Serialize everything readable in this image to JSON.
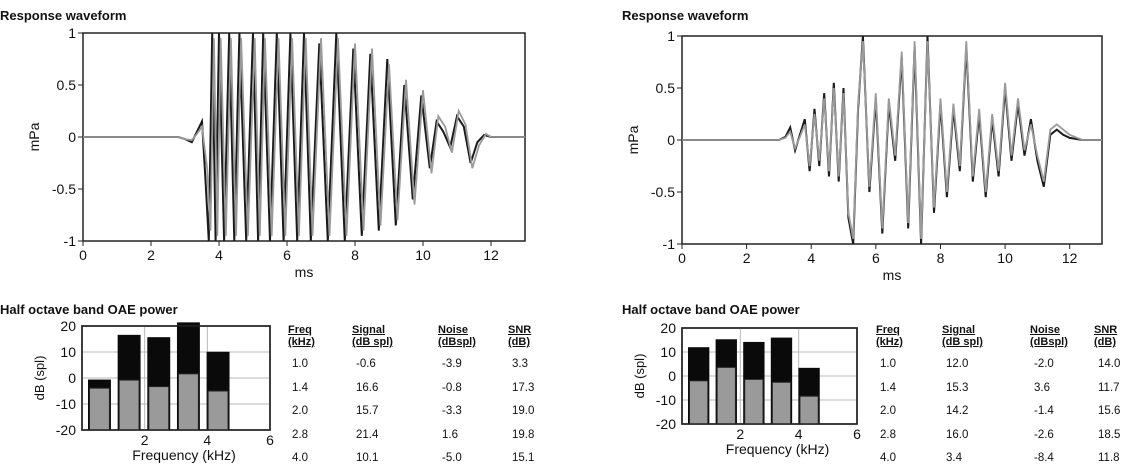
{
  "chart_data": [
    {
      "type": "line",
      "panel": "left",
      "title": "Response waveform",
      "xlabel": "ms",
      "ylabel": "mPa",
      "xlim": [
        0,
        13
      ],
      "ylim": [
        -1,
        1
      ],
      "xticks": [
        0,
        2,
        4,
        6,
        8,
        10,
        12
      ],
      "yticks": [
        -1,
        -0.5,
        0,
        0.5,
        1
      ],
      "ytick_labels": [
        "-1",
        "-0.5",
        "0",
        "0.5",
        "1"
      ],
      "grid": false,
      "series": [
        {
          "color": "#1a1a1a",
          "x": [
            0,
            2.8,
            3.0,
            3.2,
            3.35,
            3.5,
            3.6,
            3.7,
            3.8,
            3.9,
            4.0,
            4.15,
            4.3,
            4.45,
            4.6,
            4.8,
            5.0,
            5.15,
            5.3,
            5.5,
            5.7,
            5.9,
            6.1,
            6.3,
            6.5,
            6.7,
            6.95,
            7.2,
            7.45,
            7.7,
            7.95,
            8.2,
            8.45,
            8.7,
            8.95,
            9.2,
            9.45,
            9.7,
            9.95,
            10.2,
            10.4,
            10.6,
            10.8,
            11.0,
            11.2,
            11.4,
            11.6,
            11.8,
            12.0,
            12.3,
            12.6,
            13.0
          ],
          "y": [
            0,
            0,
            -0.02,
            -0.05,
            0.05,
            0.15,
            -0.4,
            -1.0,
            1.0,
            -1.0,
            1.0,
            -1.0,
            1.0,
            -1.0,
            1.0,
            -1.0,
            1.0,
            -1.0,
            1.0,
            -1.0,
            1.0,
            -1.0,
            1.0,
            -1.0,
            1.0,
            -1.0,
            0.9,
            -1.0,
            1.0,
            -1.0,
            0.85,
            -0.95,
            0.8,
            -0.9,
            0.75,
            -0.85,
            0.5,
            -0.6,
            0.4,
            -0.3,
            0.15,
            0.05,
            -0.1,
            0.2,
            0.1,
            -0.25,
            -0.05,
            0.02,
            0,
            0,
            0,
            0
          ]
        },
        {
          "color": "#9a9a9a",
          "x": [
            0,
            2.8,
            3.0,
            3.2,
            3.35,
            3.5,
            3.65,
            3.75,
            3.85,
            3.95,
            4.05,
            4.2,
            4.35,
            4.5,
            4.65,
            4.85,
            5.05,
            5.2,
            5.35,
            5.55,
            5.75,
            5.95,
            6.15,
            6.35,
            6.55,
            6.75,
            7.0,
            7.25,
            7.5,
            7.75,
            8.0,
            8.25,
            8.5,
            8.75,
            9.0,
            9.25,
            9.5,
            9.75,
            10.0,
            10.25,
            10.45,
            10.65,
            10.85,
            11.05,
            11.25,
            11.45,
            11.65,
            11.85,
            12.0,
            12.3,
            12.6,
            13.0
          ],
          "y": [
            0,
            0,
            -0.02,
            -0.03,
            0.03,
            0.1,
            -0.3,
            -0.9,
            0.95,
            -0.95,
            0.95,
            -0.95,
            0.95,
            -0.95,
            0.95,
            -0.95,
            0.95,
            -0.95,
            0.95,
            -0.95,
            0.95,
            -0.95,
            0.95,
            -0.95,
            0.95,
            -0.95,
            0.95,
            -0.95,
            0.95,
            -0.95,
            0.9,
            -0.9,
            0.85,
            -0.85,
            0.7,
            -0.8,
            0.55,
            -0.65,
            0.45,
            -0.35,
            0.2,
            0.1,
            -0.15,
            0.25,
            0.12,
            -0.3,
            -0.08,
            0.03,
            0,
            0,
            0,
            0
          ]
        }
      ]
    },
    {
      "type": "line",
      "panel": "right",
      "title": "Response waveform",
      "xlabel": "ms",
      "ylabel": "mPa",
      "xlim": [
        0,
        13
      ],
      "ylim": [
        -1,
        1
      ],
      "xticks": [
        0,
        2,
        4,
        6,
        8,
        10,
        12
      ],
      "yticks": [
        -1,
        -0.5,
        0,
        0.5,
        1
      ],
      "ytick_labels": [
        "-1",
        "-0.5",
        "0",
        "0.5",
        "1"
      ],
      "grid": false,
      "series": [
        {
          "color": "#1a1a1a",
          "x": [
            0,
            3.0,
            3.2,
            3.35,
            3.5,
            3.65,
            3.8,
            3.95,
            4.1,
            4.25,
            4.4,
            4.55,
            4.7,
            4.85,
            5.0,
            5.15,
            5.3,
            5.45,
            5.6,
            5.8,
            6.0,
            6.2,
            6.4,
            6.6,
            6.8,
            7.0,
            7.2,
            7.4,
            7.6,
            7.8,
            8.0,
            8.2,
            8.4,
            8.6,
            8.8,
            9.0,
            9.2,
            9.4,
            9.6,
            9.8,
            10.0,
            10.2,
            10.4,
            10.6,
            10.8,
            11.0,
            11.2,
            11.4,
            11.6,
            11.8,
            12.0,
            12.4,
            13.0
          ],
          "y": [
            0,
            0,
            0.03,
            0.12,
            -0.1,
            0.05,
            0.2,
            -0.3,
            0.3,
            -0.25,
            0.45,
            -0.35,
            0.55,
            -0.4,
            0.5,
            -0.75,
            -1.0,
            0.3,
            1.0,
            -0.5,
            0.4,
            -0.9,
            0.35,
            -0.2,
            0.8,
            -0.85,
            0.9,
            -1.0,
            1.0,
            -0.7,
            0.35,
            -0.55,
            0.3,
            -0.3,
            0.9,
            -0.4,
            0.25,
            -0.55,
            0.2,
            -0.35,
            0.5,
            -0.2,
            0.35,
            -0.15,
            0.2,
            -0.2,
            -0.45,
            0.05,
            0.1,
            0.05,
            0.02,
            0,
            0
          ]
        },
        {
          "color": "#9a9a9a",
          "x": [
            0,
            3.0,
            3.2,
            3.35,
            3.5,
            3.65,
            3.8,
            3.95,
            4.1,
            4.25,
            4.4,
            4.55,
            4.7,
            4.85,
            5.0,
            5.15,
            5.3,
            5.45,
            5.6,
            5.8,
            6.0,
            6.2,
            6.4,
            6.6,
            6.8,
            7.0,
            7.2,
            7.4,
            7.6,
            7.8,
            8.0,
            8.2,
            8.4,
            8.6,
            8.8,
            9.0,
            9.2,
            9.4,
            9.6,
            9.8,
            10.0,
            10.2,
            10.4,
            10.6,
            10.8,
            11.0,
            11.2,
            11.4,
            11.6,
            11.8,
            12.0,
            12.4,
            13.0
          ],
          "y": [
            0,
            0,
            0.02,
            0.08,
            -0.08,
            0.03,
            0.15,
            -0.25,
            0.25,
            -0.2,
            0.4,
            -0.3,
            0.5,
            -0.35,
            0.45,
            -0.7,
            -0.95,
            0.35,
            0.95,
            -0.45,
            0.45,
            -0.85,
            0.4,
            -0.15,
            0.85,
            -0.8,
            0.95,
            -0.95,
            0.95,
            -0.65,
            0.4,
            -0.5,
            0.35,
            -0.25,
            0.95,
            -0.35,
            0.3,
            -0.5,
            0.25,
            -0.3,
            0.55,
            -0.15,
            0.4,
            -0.1,
            0.15,
            -0.15,
            -0.4,
            0.1,
            0.15,
            0.1,
            0.05,
            0,
            0
          ]
        }
      ]
    },
    {
      "type": "bar",
      "panel": "left",
      "title": "Half octave band OAE power",
      "xlabel": "Frequency (kHz)",
      "ylabel": "dB (spl)",
      "xlim": [
        0,
        6
      ],
      "ylim": [
        -20,
        20
      ],
      "xticks": [
        2,
        4,
        6
      ],
      "yticks": [
        -20,
        -10,
        0,
        10,
        20
      ],
      "grid": true,
      "series": [
        {
          "name": "Signal",
          "color": "#0a0a0a",
          "values": [
            -0.6,
            16.6,
            15.7,
            21.4,
            10.1
          ]
        },
        {
          "name": "Noise",
          "color": "#9a9a9a",
          "values": [
            -3.9,
            -0.8,
            -3.3,
            1.6,
            -5.0
          ]
        }
      ],
      "freq_khz": [
        1.0,
        1.4,
        2.0,
        2.8,
        4.0
      ],
      "table": {
        "headers": [
          [
            "Freq",
            "(kHz)"
          ],
          [
            "Signal",
            "(dB spl)"
          ],
          [
            "Noise",
            "(dBspl)"
          ],
          [
            "SNR",
            "(dB)"
          ]
        ],
        "rows": [
          [
            "1.0",
            "-0.6",
            "-3.9",
            "3.3"
          ],
          [
            "1.4",
            "16.6",
            "-0.8",
            "17.3"
          ],
          [
            "2.0",
            "15.7",
            "-3.3",
            "19.0"
          ],
          [
            "2.8",
            "21.4",
            "1.6",
            "19.8"
          ],
          [
            "4.0",
            "10.1",
            "-5.0",
            "15.1"
          ]
        ]
      }
    },
    {
      "type": "bar",
      "panel": "right",
      "title": "Half octave band OAE power",
      "xlabel": "Frequency (kHz)",
      "ylabel": "dB (spl)",
      "xlim": [
        0,
        6
      ],
      "ylim": [
        -20,
        20
      ],
      "xticks": [
        2,
        4,
        6
      ],
      "yticks": [
        -20,
        -10,
        0,
        10,
        20
      ],
      "grid": true,
      "series": [
        {
          "name": "Signal",
          "color": "#0a0a0a",
          "values": [
            12.0,
            15.3,
            14.2,
            16.0,
            3.4
          ]
        },
        {
          "name": "Noise",
          "color": "#9a9a9a",
          "values": [
            -2.0,
            3.6,
            -1.4,
            -2.6,
            -8.4
          ]
        }
      ],
      "freq_khz": [
        1.0,
        1.4,
        2.0,
        2.8,
        4.0
      ],
      "table": {
        "headers": [
          [
            "Freq",
            "(kHz)"
          ],
          [
            "Signal",
            "(dB spl)"
          ],
          [
            "Noise",
            "(dBspl)"
          ],
          [
            "SNR",
            "(dB)"
          ]
        ],
        "rows": [
          [
            "1.0",
            "12.0",
            "-2.0",
            "14.0"
          ],
          [
            "1.4",
            "15.3",
            "3.6",
            "11.7"
          ],
          [
            "2.0",
            "14.2",
            "-1.4",
            "15.6"
          ],
          [
            "2.8",
            "16.0",
            "-2.6",
            "18.5"
          ],
          [
            "4.0",
            "3.4",
            "-8.4",
            "11.8"
          ]
        ]
      }
    }
  ]
}
